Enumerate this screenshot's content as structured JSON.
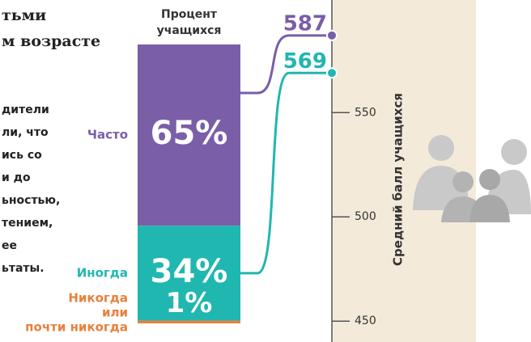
{
  "text_fragments": {
    "heading": [
      "тьми",
      "м возрасте"
    ],
    "body": [
      "дители",
      "ли, что",
      "ись со",
      "и до",
      "ьностью,",
      "тением,",
      "ее",
      "ьтаты."
    ]
  },
  "chart_data": {
    "type": "stacked-bar-scale",
    "bar_title": "Процент\nучащихся",
    "categories": [
      "Часто",
      "Иногда",
      "Никогда\nили\nпочти никогда"
    ],
    "values": [
      65,
      34,
      1
    ],
    "value_labels": [
      "65%",
      "34%",
      "1%"
    ],
    "colors": [
      "#7a5ea8",
      "#20b7b0",
      "#e8803e"
    ],
    "scores": [
      587,
      569
    ],
    "score_axis_title": "Средний балл учащихся",
    "ylim": [
      440,
      604
    ],
    "yticks": [
      450,
      500,
      550
    ]
  }
}
